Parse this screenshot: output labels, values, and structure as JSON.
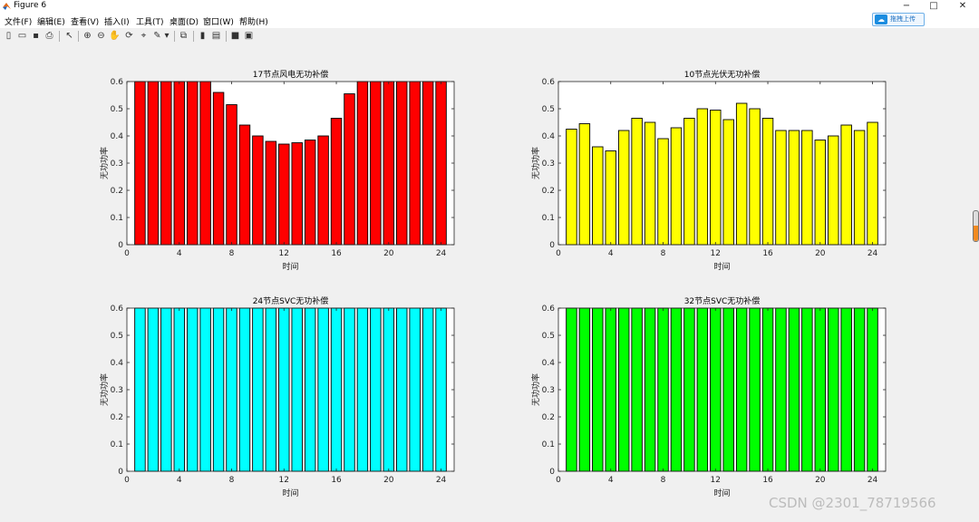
{
  "window": {
    "title": "Figure 6",
    "controls": {
      "minimize": "−",
      "maximize": "□",
      "close": "✕"
    }
  },
  "menu": {
    "items": [
      "文件(F)",
      "编辑(E)",
      "查看(V)",
      "插入(I)",
      "工具(T)",
      "桌面(D)",
      "窗口(W)",
      "帮助(H)"
    ]
  },
  "upload_badge": {
    "label": "拖拽上传"
  },
  "toolbar": {
    "tools": [
      {
        "icon": "new-figure-icon",
        "glyph": "▯"
      },
      {
        "icon": "open-file-icon",
        "glyph": "▭"
      },
      {
        "icon": "save-icon",
        "glyph": "▪"
      },
      {
        "icon": "print-icon",
        "glyph": "⎙"
      },
      {
        "icon": "pointer-icon",
        "glyph": "↖"
      },
      {
        "icon": "zoom-in-icon",
        "glyph": "⊕"
      },
      {
        "icon": "zoom-out-icon",
        "glyph": "⊖"
      },
      {
        "icon": "pan-icon",
        "glyph": "✋"
      },
      {
        "icon": "rotate-icon",
        "glyph": "⟳"
      },
      {
        "icon": "data-cursor-icon",
        "glyph": "⌖"
      },
      {
        "icon": "brush-icon",
        "glyph": "✎"
      },
      {
        "icon": "dropdown-arrow-icon",
        "glyph": "▾"
      },
      {
        "icon": "link-plot-icon",
        "glyph": "⧉"
      },
      {
        "icon": "colorbar-icon",
        "glyph": "▮"
      },
      {
        "icon": "legend-icon",
        "glyph": "▤"
      },
      {
        "icon": "hide-tools-icon",
        "glyph": "■"
      },
      {
        "icon": "dock-icon",
        "glyph": "▣"
      }
    ]
  },
  "watermark": "CSDN @2301_78719566",
  "colors": {
    "figure_bg": "#f0f0f0",
    "axes_bg": "#ffffff",
    "bar_edge": "#000000",
    "red": "#ff0000",
    "yellow": "#ffff00",
    "cyan": "#00ffff",
    "green": "#00ff00"
  },
  "chart_data": [
    {
      "type": "bar",
      "title": "17节点风电无功补偿",
      "xlabel": "时间",
      "ylabel": "无功功率",
      "color": "#ff0000",
      "x": [
        1,
        2,
        3,
        4,
        5,
        6,
        7,
        8,
        9,
        10,
        11,
        12,
        13,
        14,
        15,
        16,
        17,
        18,
        19,
        20,
        21,
        22,
        23,
        24
      ],
      "values": [
        0.6,
        0.6,
        0.6,
        0.6,
        0.6,
        0.6,
        0.56,
        0.515,
        0.44,
        0.4,
        0.38,
        0.37,
        0.375,
        0.385,
        0.4,
        0.465,
        0.555,
        0.6,
        0.6,
        0.6,
        0.6,
        0.6,
        0.6,
        0.6
      ],
      "xlim": [
        0,
        25
      ],
      "ylim": [
        0,
        0.6
      ],
      "xticks": [
        0,
        4,
        8,
        12,
        16,
        20,
        24
      ],
      "yticks": [
        0,
        0.1,
        0.2,
        0.3,
        0.4,
        0.5,
        0.6
      ],
      "xtick_labels": [
        "0",
        "4",
        "8",
        "12",
        "16",
        "20",
        "24"
      ],
      "ytick_labels": [
        "0",
        "0.1",
        "0.2",
        "0.3",
        "0.4",
        "0.5",
        "0.6"
      ],
      "grid": false
    },
    {
      "type": "bar",
      "title": "10节点光伏无功补偿",
      "xlabel": "时间",
      "ylabel": "无功功率",
      "color": "#ffff00",
      "x": [
        1,
        2,
        3,
        4,
        5,
        6,
        7,
        8,
        9,
        10,
        11,
        12,
        13,
        14,
        15,
        16,
        17,
        18,
        19,
        20,
        21,
        22,
        23,
        24
      ],
      "values": [
        0.425,
        0.445,
        0.36,
        0.345,
        0.42,
        0.465,
        0.45,
        0.39,
        0.43,
        0.465,
        0.5,
        0.495,
        0.46,
        0.52,
        0.5,
        0.465,
        0.42,
        0.42,
        0.42,
        0.385,
        0.4,
        0.44,
        0.42,
        0.45
      ],
      "xlim": [
        0,
        25
      ],
      "ylim": [
        0,
        0.6
      ],
      "xticks": [
        0,
        4,
        8,
        12,
        16,
        20,
        24
      ],
      "yticks": [
        0,
        0.1,
        0.2,
        0.3,
        0.4,
        0.5,
        0.6
      ],
      "xtick_labels": [
        "0",
        "4",
        "8",
        "12",
        "16",
        "20",
        "24"
      ],
      "ytick_labels": [
        "0",
        "0.1",
        "0.2",
        "0.3",
        "0.4",
        "0.5",
        "0.6"
      ],
      "grid": false
    },
    {
      "type": "bar",
      "title": "24节点SVC无功补偿",
      "xlabel": "时间",
      "ylabel": "无功功率",
      "color": "#00ffff",
      "x": [
        1,
        2,
        3,
        4,
        5,
        6,
        7,
        8,
        9,
        10,
        11,
        12,
        13,
        14,
        15,
        16,
        17,
        18,
        19,
        20,
        21,
        22,
        23,
        24
      ],
      "values": [
        0.6,
        0.6,
        0.6,
        0.6,
        0.6,
        0.6,
        0.6,
        0.6,
        0.6,
        0.6,
        0.6,
        0.6,
        0.6,
        0.6,
        0.6,
        0.6,
        0.6,
        0.6,
        0.6,
        0.6,
        0.6,
        0.6,
        0.6,
        0.6
      ],
      "xlim": [
        0,
        25
      ],
      "ylim": [
        0,
        0.6
      ],
      "xticks": [
        0,
        4,
        8,
        12,
        16,
        20,
        24
      ],
      "yticks": [
        0,
        0.1,
        0.2,
        0.3,
        0.4,
        0.5,
        0.6
      ],
      "xtick_labels": [
        "0",
        "4",
        "8",
        "12",
        "16",
        "20",
        "24"
      ],
      "ytick_labels": [
        "0",
        "0.1",
        "0.2",
        "0.3",
        "0.4",
        "0.5",
        "0.6"
      ],
      "grid": false
    },
    {
      "type": "bar",
      "title": "32节点SVC无功补偿",
      "xlabel": "时间",
      "ylabel": "无功功率",
      "color": "#00ff00",
      "x": [
        1,
        2,
        3,
        4,
        5,
        6,
        7,
        8,
        9,
        10,
        11,
        12,
        13,
        14,
        15,
        16,
        17,
        18,
        19,
        20,
        21,
        22,
        23,
        24
      ],
      "values": [
        0.6,
        0.6,
        0.6,
        0.6,
        0.6,
        0.6,
        0.6,
        0.6,
        0.6,
        0.6,
        0.6,
        0.6,
        0.6,
        0.6,
        0.6,
        0.6,
        0.6,
        0.6,
        0.6,
        0.6,
        0.6,
        0.6,
        0.6,
        0.6
      ],
      "xlim": [
        0,
        25
      ],
      "ylim": [
        0,
        0.6
      ],
      "xticks": [
        0,
        4,
        8,
        12,
        16,
        20,
        24
      ],
      "yticks": [
        0,
        0.1,
        0.2,
        0.3,
        0.4,
        0.5,
        0.6
      ],
      "xtick_labels": [
        "0",
        "4",
        "8",
        "12",
        "16",
        "20",
        "24"
      ],
      "ytick_labels": [
        "0",
        "0.1",
        "0.2",
        "0.3",
        "0.4",
        "0.5",
        "0.6"
      ],
      "grid": false
    }
  ]
}
